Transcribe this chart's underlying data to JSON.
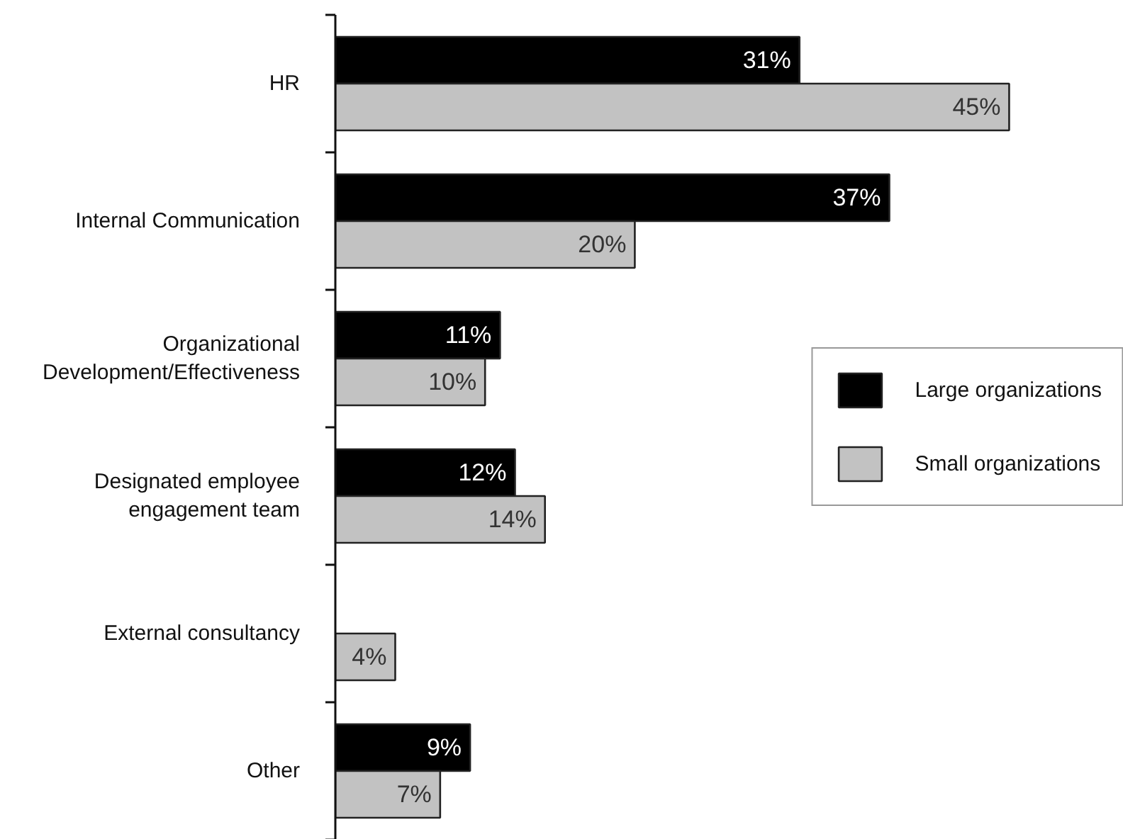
{
  "chart_data": {
    "type": "bar",
    "orientation": "horizontal",
    "categories": [
      "HR",
      "Internal Communication",
      "Organizational Development/Effectiveness",
      "Designated employee engagement team",
      "External consultancy",
      "Other"
    ],
    "series": [
      {
        "name": "Large organizations",
        "color": "#000000",
        "values": [
          31,
          37,
          11,
          12,
          null,
          9
        ],
        "value_labels": [
          "31%",
          "37%",
          "11%",
          "12%",
          null,
          "9%"
        ]
      },
      {
        "name": "Small organizations",
        "color": "#c2c2c2",
        "values": [
          45,
          20,
          10,
          14,
          4,
          7
        ],
        "value_labels": [
          "45%",
          "20%",
          "10%",
          "14%",
          "4%",
          "7%"
        ]
      }
    ],
    "legend": "right",
    "grid": false
  }
}
